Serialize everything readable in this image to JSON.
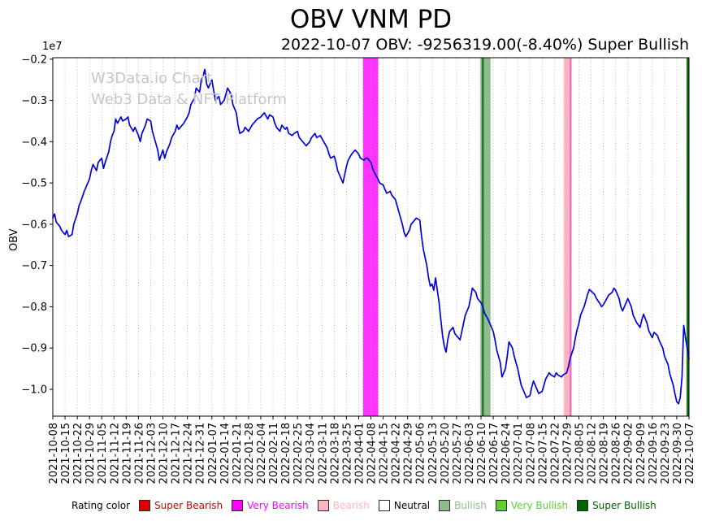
{
  "watermark": {
    "line1": "W3Data.io Chart",
    "line2": "Web3 Data & NFT Platform",
    "color": "#c6c6c6"
  },
  "legend": {
    "title": "Rating color",
    "items": [
      {
        "label": "Super Bearish",
        "color": "#d90000"
      },
      {
        "label": "Very Bearish",
        "color": "#ff00ff"
      },
      {
        "label": "Bearish",
        "color": "#ffb6c1"
      },
      {
        "label": "Neutral",
        "color": "#ffffff",
        "text_color": "#000000"
      },
      {
        "label": "Bullish",
        "color": "#8fbc8f"
      },
      {
        "label": "Very Bullish",
        "color": "#5fd02f"
      },
      {
        "label": "Super Bullish",
        "color": "#006400"
      }
    ]
  },
  "chart_data": {
    "type": "line",
    "title": "OBV VNM PD",
    "subtitle": "2022-10-07 OBV: -9256319.00(-8.40%) Super Bullish",
    "ylabel": "OBV",
    "y_offset_label": "1e7",
    "y_value_unit": "values are in units of 1e7",
    "last_date": "2022-10-07",
    "last_value": -9256319.0,
    "last_change_pct": -8.4,
    "last_rating": "Super Bullish",
    "line_color": "#0000dd",
    "grid": "vertical-dotted",
    "ylim": [
      -1.065,
      -0.1965
    ],
    "yticks": [
      -0.2,
      -0.3,
      -0.4,
      -0.5,
      -0.6,
      -0.7,
      -0.8,
      -0.9,
      -1.0
    ],
    "x_unit": "days since 2021-10-08",
    "x_range_days": [
      0,
      364
    ],
    "x_tick_interval_days": 7,
    "x_tick_labels": [
      "2021-10-08",
      "2021-10-15",
      "2021-10-22",
      "2021-10-29",
      "2021-11-05",
      "2021-11-12",
      "2021-11-19",
      "2021-11-26",
      "2021-12-03",
      "2021-12-10",
      "2021-12-17",
      "2021-12-24",
      "2021-12-31",
      "2022-01-07",
      "2022-01-14",
      "2022-01-21",
      "2022-01-28",
      "2022-02-04",
      "2022-02-11",
      "2022-02-18",
      "2022-02-25",
      "2022-03-04",
      "2022-03-11",
      "2022-03-18",
      "2022-03-25",
      "2022-04-01",
      "2022-04-08",
      "2022-04-15",
      "2022-04-22",
      "2022-04-29",
      "2022-05-06",
      "2022-05-13",
      "2022-05-20",
      "2022-05-27",
      "2022-06-03",
      "2022-06-10",
      "2022-06-17",
      "2022-06-24",
      "2022-07-01",
      "2022-07-08",
      "2022-07-15",
      "2022-07-22",
      "2022-07-29",
      "2022-08-05",
      "2022-08-12",
      "2022-08-19",
      "2022-08-26",
      "2022-09-02",
      "2022-09-09",
      "2022-09-16",
      "2022-09-23",
      "2022-09-30",
      "2022-10-07"
    ],
    "bands": [
      {
        "from_day": 177.5,
        "to_day": 186.2,
        "color": "#ff00ff",
        "opacity": 0.8,
        "rating": "Very Bearish"
      },
      {
        "from_day": 244.6,
        "to_day": 250.4,
        "color": "#8fbc8f",
        "opacity": 1,
        "rating": "Bullish"
      },
      {
        "from_day": 245.4,
        "to_day": 246.6,
        "color": "#1f7a1f",
        "opacity": 1,
        "rating": "Super Bullish"
      },
      {
        "from_day": 292.3,
        "to_day": 296.8,
        "color": "#ffb6c1",
        "opacity": 1,
        "rating": "Bearish"
      },
      {
        "from_day": 295.7,
        "to_day": 296.8,
        "color": "#f06eb8",
        "opacity": 1,
        "rating": "Bearish"
      },
      {
        "from_day": 362.6,
        "to_day": 364,
        "color": "#0b7a0b",
        "opacity": 1,
        "rating": "Super Bullish"
      }
    ],
    "series": [
      {
        "name": "OBV",
        "points": [
          [
            0,
            -0.585
          ],
          [
            1,
            -0.575
          ],
          [
            2,
            -0.595
          ],
          [
            4,
            -0.605
          ],
          [
            5,
            -0.615
          ],
          [
            7,
            -0.625
          ],
          [
            8,
            -0.615
          ],
          [
            9,
            -0.63
          ],
          [
            11,
            -0.625
          ],
          [
            12,
            -0.6
          ],
          [
            14,
            -0.575
          ],
          [
            15,
            -0.555
          ],
          [
            16,
            -0.545
          ],
          [
            18,
            -0.52
          ],
          [
            19,
            -0.51
          ],
          [
            21,
            -0.49
          ],
          [
            22,
            -0.47
          ],
          [
            23,
            -0.455
          ],
          [
            25,
            -0.47
          ],
          [
            26,
            -0.45
          ],
          [
            28,
            -0.44
          ],
          [
            29,
            -0.465
          ],
          [
            30,
            -0.45
          ],
          [
            32,
            -0.425
          ],
          [
            33,
            -0.4
          ],
          [
            34,
            -0.385
          ],
          [
            35,
            -0.375
          ],
          [
            36,
            -0.345
          ],
          [
            37,
            -0.355
          ],
          [
            39,
            -0.34
          ],
          [
            40,
            -0.35
          ],
          [
            42,
            -0.345
          ],
          [
            43,
            -0.34
          ],
          [
            44,
            -0.36
          ],
          [
            46,
            -0.375
          ],
          [
            47,
            -0.365
          ],
          [
            49,
            -0.385
          ],
          [
            50,
            -0.4
          ],
          [
            51,
            -0.38
          ],
          [
            53,
            -0.36
          ],
          [
            54,
            -0.345
          ],
          [
            56,
            -0.35
          ],
          [
            57,
            -0.375
          ],
          [
            58,
            -0.39
          ],
          [
            60,
            -0.42
          ],
          [
            61,
            -0.445
          ],
          [
            63,
            -0.42
          ],
          [
            64,
            -0.44
          ],
          [
            65,
            -0.425
          ],
          [
            67,
            -0.405
          ],
          [
            68,
            -0.39
          ],
          [
            70,
            -0.375
          ],
          [
            71,
            -0.36
          ],
          [
            72,
            -0.37
          ],
          [
            74,
            -0.36
          ],
          [
            75,
            -0.355
          ],
          [
            77,
            -0.34
          ],
          [
            78,
            -0.33
          ],
          [
            79,
            -0.31
          ],
          [
            81,
            -0.295
          ],
          [
            82,
            -0.27
          ],
          [
            84,
            -0.28
          ],
          [
            85,
            -0.25
          ],
          [
            86,
            -0.24
          ],
          [
            87,
            -0.225
          ],
          [
            88,
            -0.26
          ],
          [
            89,
            -0.27
          ],
          [
            91,
            -0.25
          ],
          [
            92,
            -0.275
          ],
          [
            93,
            -0.3
          ],
          [
            95,
            -0.29
          ],
          [
            96,
            -0.31
          ],
          [
            98,
            -0.3
          ],
          [
            99,
            -0.285
          ],
          [
            100,
            -0.27
          ],
          [
            102,
            -0.285
          ],
          [
            103,
            -0.31
          ],
          [
            105,
            -0.33
          ],
          [
            106,
            -0.36
          ],
          [
            107,
            -0.38
          ],
          [
            109,
            -0.375
          ],
          [
            110,
            -0.365
          ],
          [
            112,
            -0.375
          ],
          [
            114,
            -0.36
          ],
          [
            116,
            -0.35
          ],
          [
            117,
            -0.345
          ],
          [
            119,
            -0.34
          ],
          [
            120,
            -0.335
          ],
          [
            121,
            -0.33
          ],
          [
            123,
            -0.345
          ],
          [
            124,
            -0.335
          ],
          [
            126,
            -0.34
          ],
          [
            127,
            -0.355
          ],
          [
            128,
            -0.365
          ],
          [
            130,
            -0.375
          ],
          [
            131,
            -0.36
          ],
          [
            133,
            -0.37
          ],
          [
            134,
            -0.365
          ],
          [
            135,
            -0.38
          ],
          [
            137,
            -0.385
          ],
          [
            138,
            -0.38
          ],
          [
            140,
            -0.375
          ],
          [
            141,
            -0.39
          ],
          [
            142,
            -0.395
          ],
          [
            144,
            -0.405
          ],
          [
            145,
            -0.41
          ],
          [
            147,
            -0.4
          ],
          [
            148,
            -0.39
          ],
          [
            150,
            -0.38
          ],
          [
            151,
            -0.39
          ],
          [
            153,
            -0.385
          ],
          [
            155,
            -0.4
          ],
          [
            157,
            -0.415
          ],
          [
            158,
            -0.43
          ],
          [
            159,
            -0.44
          ],
          [
            161,
            -0.435
          ],
          [
            162,
            -0.45
          ],
          [
            163,
            -0.47
          ],
          [
            165,
            -0.49
          ],
          [
            166,
            -0.5
          ],
          [
            167,
            -0.48
          ],
          [
            168,
            -0.46
          ],
          [
            169,
            -0.445
          ],
          [
            171,
            -0.43
          ],
          [
            172,
            -0.425
          ],
          [
            173,
            -0.42
          ],
          [
            175,
            -0.43
          ],
          [
            176,
            -0.44
          ],
          [
            178,
            -0.445
          ],
          [
            179,
            -0.44
          ],
          [
            180,
            -0.44
          ],
          [
            182,
            -0.45
          ],
          [
            183,
            -0.465
          ],
          [
            184,
            -0.475
          ],
          [
            186,
            -0.49
          ],
          [
            187,
            -0.5
          ],
          [
            189,
            -0.505
          ],
          [
            190,
            -0.515
          ],
          [
            191,
            -0.525
          ],
          [
            193,
            -0.52
          ],
          [
            194,
            -0.53
          ],
          [
            196,
            -0.54
          ],
          [
            197,
            -0.555
          ],
          [
            198,
            -0.57
          ],
          [
            200,
            -0.6
          ],
          [
            201,
            -0.62
          ],
          [
            202,
            -0.63
          ],
          [
            204,
            -0.615
          ],
          [
            205,
            -0.6
          ],
          [
            207,
            -0.59
          ],
          [
            208,
            -0.585
          ],
          [
            210,
            -0.59
          ],
          [
            211,
            -0.63
          ],
          [
            212,
            -0.66
          ],
          [
            214,
            -0.7
          ],
          [
            215,
            -0.73
          ],
          [
            216,
            -0.75
          ],
          [
            217,
            -0.745
          ],
          [
            218,
            -0.76
          ],
          [
            219,
            -0.73
          ],
          [
            221,
            -0.79
          ],
          [
            222,
            -0.83
          ],
          [
            223,
            -0.87
          ],
          [
            224,
            -0.895
          ],
          [
            225,
            -0.91
          ],
          [
            226,
            -0.88
          ],
          [
            227,
            -0.86
          ],
          [
            229,
            -0.85
          ],
          [
            230,
            -0.865
          ],
          [
            231,
            -0.87
          ],
          [
            233,
            -0.88
          ],
          [
            234,
            -0.86
          ],
          [
            235,
            -0.84
          ],
          [
            236,
            -0.82
          ],
          [
            238,
            -0.8
          ],
          [
            239,
            -0.78
          ],
          [
            240,
            -0.755
          ],
          [
            242,
            -0.765
          ],
          [
            243,
            -0.78
          ],
          [
            245,
            -0.79
          ],
          [
            246,
            -0.8
          ],
          [
            247,
            -0.815
          ],
          [
            249,
            -0.83
          ],
          [
            250,
            -0.84
          ],
          [
            252,
            -0.86
          ],
          [
            253,
            -0.88
          ],
          [
            254,
            -0.905
          ],
          [
            256,
            -0.935
          ],
          [
            257,
            -0.97
          ],
          [
            259,
            -0.95
          ],
          [
            260,
            -0.92
          ],
          [
            261,
            -0.885
          ],
          [
            263,
            -0.9
          ],
          [
            264,
            -0.92
          ],
          [
            266,
            -0.95
          ],
          [
            267,
            -0.97
          ],
          [
            268,
            -0.99
          ],
          [
            270,
            -1.01
          ],
          [
            271,
            -1.02
          ],
          [
            273,
            -1.015
          ],
          [
            274,
            -0.995
          ],
          [
            275,
            -0.98
          ],
          [
            277,
            -1.0
          ],
          [
            278,
            -1.01
          ],
          [
            280,
            -1.005
          ],
          [
            281,
            -0.99
          ],
          [
            282,
            -0.975
          ],
          [
            284,
            -0.96
          ],
          [
            285,
            -0.965
          ],
          [
            287,
            -0.97
          ],
          [
            288,
            -0.96
          ],
          [
            289,
            -0.965
          ],
          [
            291,
            -0.97
          ],
          [
            292,
            -0.965
          ],
          [
            294,
            -0.96
          ],
          [
            295,
            -0.945
          ],
          [
            296,
            -0.925
          ],
          [
            298,
            -0.9
          ],
          [
            299,
            -0.875
          ],
          [
            300,
            -0.855
          ],
          [
            301,
            -0.84
          ],
          [
            302,
            -0.82
          ],
          [
            304,
            -0.8
          ],
          [
            305,
            -0.785
          ],
          [
            306,
            -0.77
          ],
          [
            307,
            -0.758
          ],
          [
            308,
            -0.762
          ],
          [
            310,
            -0.77
          ],
          [
            311,
            -0.78
          ],
          [
            313,
            -0.792
          ],
          [
            314,
            -0.8
          ],
          [
            315,
            -0.795
          ],
          [
            317,
            -0.78
          ],
          [
            318,
            -0.772
          ],
          [
            320,
            -0.765
          ],
          [
            321,
            -0.755
          ],
          [
            322,
            -0.76
          ],
          [
            324,
            -0.78
          ],
          [
            325,
            -0.8
          ],
          [
            326,
            -0.81
          ],
          [
            328,
            -0.79
          ],
          [
            329,
            -0.78
          ],
          [
            331,
            -0.8
          ],
          [
            332,
            -0.82
          ],
          [
            334,
            -0.838
          ],
          [
            336,
            -0.85
          ],
          [
            337,
            -0.832
          ],
          [
            338,
            -0.818
          ],
          [
            340,
            -0.84
          ],
          [
            341,
            -0.858
          ],
          [
            343,
            -0.875
          ],
          [
            344,
            -0.862
          ],
          [
            346,
            -0.87
          ],
          [
            347,
            -0.882
          ],
          [
            349,
            -0.9
          ],
          [
            350,
            -0.92
          ],
          [
            352,
            -0.94
          ],
          [
            353,
            -0.962
          ],
          [
            355,
            -0.99
          ],
          [
            356,
            -1.012
          ],
          [
            357,
            -1.03
          ],
          [
            358,
            -1.035
          ],
          [
            359,
            -1.02
          ],
          [
            360,
            -0.97
          ],
          [
            361,
            -0.845
          ],
          [
            362,
            -0.875
          ],
          [
            363,
            -0.9
          ],
          [
            364,
            -0.9256
          ]
        ]
      }
    ]
  }
}
